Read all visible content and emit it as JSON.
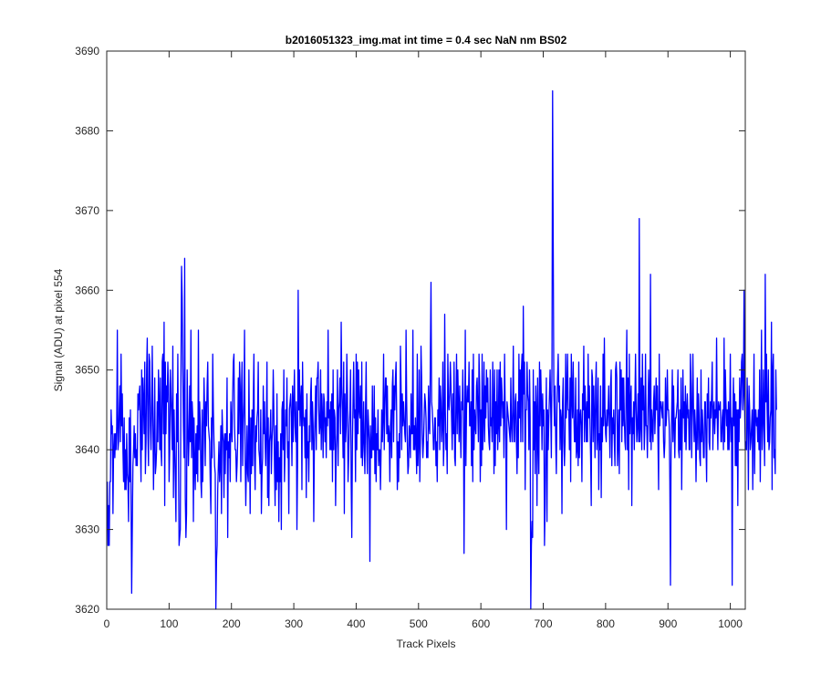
{
  "chart_data": {
    "type": "line",
    "title": "b2016051323_img.mat int time = 0.4 sec  NaN nm BS02",
    "xlabel": "Track Pixels",
    "ylabel": "Signal (ADU) at pixel 554",
    "xlim": [
      0,
      1024
    ],
    "ylim": [
      3620,
      3690
    ],
    "xticks": [
      0,
      100,
      200,
      300,
      400,
      500,
      600,
      700,
      800,
      900,
      1000
    ],
    "yticks": [
      3620,
      3630,
      3640,
      3650,
      3660,
      3670,
      3680,
      3690
    ],
    "grid": false,
    "line_color": "#0000ff",
    "series": [
      {
        "x_start": 1,
        "x_step": 1,
        "values": [
          3636,
          3628,
          3633,
          3628,
          3636,
          3636,
          3645,
          3642,
          3643,
          3632,
          3640,
          3642,
          3639,
          3642,
          3640,
          3643,
          3655,
          3640,
          3641,
          3645,
          3648,
          3641,
          3652,
          3643,
          3647,
          3640,
          3636,
          3644,
          3635,
          3640,
          3635,
          3642,
          3637,
          3636,
          3631,
          3644,
          3636,
          3645,
          3634,
          3622,
          3630,
          3638,
          3640,
          3643,
          3639,
          3642,
          3638,
          3640,
          3638,
          3647,
          3645,
          3647,
          3648,
          3641,
          3636,
          3650,
          3640,
          3649,
          3646,
          3642,
          3651,
          3637,
          3641,
          3650,
          3654,
          3642,
          3638,
          3652,
          3651,
          3643,
          3640,
          3645,
          3653,
          3644,
          3635,
          3641,
          3649,
          3637,
          3638,
          3640,
          3646,
          3641,
          3650,
          3646,
          3640,
          3649,
          3640,
          3638,
          3651,
          3652,
          3642,
          3656,
          3633,
          3651,
          3642,
          3648,
          3646,
          3651,
          3648,
          3636,
          3640,
          3650,
          3647,
          3644,
          3640,
          3653,
          3634,
          3645,
          3640,
          3636,
          3631,
          3647,
          3641,
          3652,
          3640,
          3628,
          3629,
          3630,
          3649,
          3663,
          3659,
          3650,
          3643,
          3639,
          3664,
          3634,
          3629,
          3632,
          3650,
          3644,
          3638,
          3641,
          3648,
          3641,
          3655,
          3639,
          3646,
          3644,
          3631,
          3644,
          3638,
          3635,
          3642,
          3637,
          3643,
          3636,
          3655,
          3640,
          3646,
          3643,
          3636,
          3634,
          3645,
          3636,
          3641,
          3649,
          3645,
          3638,
          3646,
          3643,
          3648,
          3651,
          3643,
          3642,
          3641,
          3636,
          3632,
          3644,
          3639,
          3652,
          3645,
          3641,
          3638,
          3637,
          3620,
          3626,
          3628,
          3635,
          3638,
          3641,
          3636,
          3638,
          3643,
          3632,
          3645,
          3642,
          3641,
          3634,
          3642,
          3637,
          3642,
          3640,
          3649,
          3629,
          3641,
          3639,
          3642,
          3636,
          3646,
          3643,
          3641,
          3647,
          3651,
          3652,
          3643,
          3640,
          3640,
          3636,
          3638,
          3641,
          3649,
          3642,
          3651,
          3648,
          3636,
          3647,
          3651,
          3638,
          3643,
          3646,
          3655,
          3639,
          3633,
          3638,
          3643,
          3637,
          3636,
          3650,
          3641,
          3632,
          3644,
          3637,
          3645,
          3638,
          3646,
          3652,
          3639,
          3635,
          3643,
          3641,
          3644,
          3645,
          3651,
          3640,
          3639,
          3637,
          3645,
          3632,
          3637,
          3639,
          3648,
          3642,
          3646,
          3641,
          3638,
          3643,
          3651,
          3634,
          3644,
          3633,
          3641,
          3642,
          3645,
          3637,
          3641,
          3643,
          3650,
          3645,
          3638,
          3633,
          3643,
          3635,
          3647,
          3636,
          3641,
          3631,
          3639,
          3636,
          3642,
          3630,
          3645,
          3646,
          3640,
          3650,
          3636,
          3640,
          3645,
          3643,
          3649,
          3639,
          3641,
          3632,
          3645,
          3646,
          3647,
          3644,
          3638,
          3648,
          3641,
          3646,
          3650,
          3643,
          3641,
          3646,
          3630,
          3638,
          3660,
          3645,
          3650,
          3643,
          3646,
          3648,
          3635,
          3651,
          3645,
          3643,
          3644,
          3639,
          3645,
          3634,
          3647,
          3639,
          3641,
          3636,
          3643,
          3641,
          3647,
          3649,
          3640,
          3646,
          3643,
          3631,
          3641,
          3644,
          3648,
          3640,
          3649,
          3649,
          3651,
          3645,
          3642,
          3643,
          3650,
          3640,
          3647,
          3644,
          3639,
          3647,
          3646,
          3641,
          3644,
          3639,
          3646,
          3643,
          3655,
          3644,
          3645,
          3640,
          3646,
          3640,
          3647,
          3636,
          3650,
          3640,
          3645,
          3644,
          3633,
          3640,
          3642,
          3650,
          3638,
          3645,
          3646,
          3649,
          3642,
          3656,
          3648,
          3645,
          3639,
          3651,
          3632,
          3647,
          3641,
          3643,
          3652,
          3647,
          3636,
          3639,
          3643,
          3645,
          3650,
          3636,
          3629,
          3641,
          3646,
          3651,
          3644,
          3645,
          3636,
          3652,
          3640,
          3651,
          3642,
          3650,
          3645,
          3644,
          3648,
          3639,
          3651,
          3638,
          3641,
          3646,
          3640,
          3637,
          3645,
          3651,
          3641,
          3637,
          3645,
          3643,
          3641,
          3626,
          3643,
          3639,
          3639,
          3648,
          3640,
          3640,
          3648,
          3637,
          3644,
          3636,
          3642,
          3640,
          3645,
          3638,
          3640,
          3640,
          3635,
          3640,
          3645,
          3641,
          3644,
          3652,
          3640,
          3645,
          3649,
          3649,
          3642,
          3648,
          3641,
          3643,
          3642,
          3636,
          3643,
          3645,
          3639,
          3648,
          3650,
          3641,
          3648,
          3645,
          3649,
          3651,
          3644,
          3635,
          3641,
          3636,
          3642,
          3639,
          3653,
          3648,
          3640,
          3647,
          3643,
          3646,
          3644,
          3642,
          3641,
          3655,
          3646,
          3641,
          3637,
          3638,
          3643,
          3642,
          3639,
          3647,
          3642,
          3642,
          3655,
          3640,
          3643,
          3640,
          3644,
          3641,
          3637,
          3652,
          3638,
          3641,
          3650,
          3636,
          3641,
          3653,
          3649,
          3642,
          3639,
          3641,
          3644,
          3647,
          3646,
          3644,
          3639,
          3641,
          3639,
          3648,
          3643,
          3642,
          3652,
          3661,
          3646,
          3645,
          3643,
          3640,
          3640,
          3644,
          3644,
          3638,
          3641,
          3636,
          3645,
          3643,
          3649,
          3640,
          3648,
          3646,
          3641,
          3643,
          3651,
          3638,
          3641,
          3657,
          3645,
          3640,
          3642,
          3637,
          3652,
          3646,
          3645,
          3647,
          3651,
          3648,
          3644,
          3640,
          3647,
          3642,
          3651,
          3639,
          3638,
          3646,
          3652,
          3642,
          3650,
          3646,
          3641,
          3648,
          3643,
          3639,
          3646,
          3645,
          3650,
          3645,
          3627,
          3641,
          3655,
          3638,
          3645,
          3648,
          3646,
          3646,
          3651,
          3643,
          3643,
          3646,
          3638,
          3650,
          3636,
          3652,
          3640,
          3645,
          3643,
          3642,
          3648,
          3649,
          3645,
          3641,
          3652,
          3648,
          3636,
          3645,
          3638,
          3652,
          3640,
          3644,
          3651,
          3641,
          3648,
          3644,
          3650,
          3646,
          3649,
          3643,
          3641,
          3640,
          3650,
          3643,
          3644,
          3641,
          3651,
          3646,
          3637,
          3650,
          3638,
          3646,
          3642,
          3650,
          3640,
          3643,
          3650,
          3641,
          3651,
          3643,
          3649,
          3647,
          3644,
          3646,
          3639,
          3652,
          3645,
          3641,
          3630,
          3646,
          3645,
          3644,
          3643,
          3642,
          3641,
          3649,
          3643,
          3641,
          3645,
          3653,
          3641,
          3641,
          3646,
          3647,
          3641,
          3637,
          3646,
          3639,
          3652,
          3644,
          3650,
          3641,
          3650,
          3652,
          3641,
          3658,
          3647,
          3651,
          3635,
          3645,
          3645,
          3651,
          3647,
          3646,
          3640,
          3650,
          3644,
          3620,
          3628,
          3631,
          3629,
          3650,
          3640,
          3646,
          3637,
          3648,
          3645,
          3633,
          3649,
          3641,
          3637,
          3651,
          3643,
          3650,
          3646,
          3640,
          3647,
          3643,
          3645,
          3628,
          3633,
          3642,
          3649,
          3631,
          3645,
          3640,
          3644,
          3647,
          3650,
          3645,
          3639,
          3651,
          3685,
          3666,
          3647,
          3643,
          3648,
          3641,
          3637,
          3645,
          3649,
          3652,
          3646,
          3648,
          3640,
          3645,
          3644,
          3632,
          3646,
          3649,
          3641,
          3638,
          3641,
          3652,
          3644,
          3647,
          3652,
          3645,
          3645,
          3640,
          3649,
          3636,
          3652,
          3647,
          3644,
          3651,
          3645,
          3641,
          3641,
          3649,
          3639,
          3640,
          3645,
          3638,
          3651,
          3639,
          3644,
          3645,
          3643,
          3636,
          3647,
          3645,
          3653,
          3641,
          3648,
          3645,
          3641,
          3646,
          3641,
          3652,
          3644,
          3648,
          3643,
          3639,
          3633,
          3650,
          3649,
          3641,
          3648,
          3644,
          3639,
          3648,
          3651,
          3640,
          3642,
          3649,
          3635,
          3642,
          3640,
          3648,
          3634,
          3644,
          3641,
          3652,
          3643,
          3654,
          3645,
          3642,
          3641,
          3645,
          3643,
          3645,
          3648,
          3643,
          3639,
          3648,
          3650,
          3638,
          3644,
          3642,
          3645,
          3641,
          3638,
          3650,
          3651,
          3649,
          3638,
          3641,
          3645,
          3637,
          3651,
          3645,
          3650,
          3641,
          3649,
          3643,
          3649,
          3644,
          3641,
          3640,
          3648,
          3655,
          3640,
          3649,
          3635,
          3652,
          3642,
          3646,
          3648,
          3633,
          3644,
          3642,
          3646,
          3640,
          3646,
          3652,
          3645,
          3641,
          3643,
          3647,
          3641,
          3669,
          3641,
          3643,
          3649,
          3640,
          3652,
          3645,
          3648,
          3640,
          3643,
          3652,
          3643,
          3643,
          3639,
          3645,
          3650,
          3646,
          3641,
          3662,
          3640,
          3645,
          3643,
          3641,
          3646,
          3648,
          3642,
          3645,
          3649,
          3645,
          3648,
          3641,
          3635,
          3652,
          3643,
          3646,
          3646,
          3645,
          3644,
          3646,
          3641,
          3639,
          3641,
          3649,
          3643,
          3645,
          3650,
          3645,
          3645,
          3643,
          3636,
          3623,
          3640,
          3645,
          3650,
          3641,
          3648,
          3643,
          3639,
          3644,
          3644,
          3645,
          3646,
          3650,
          3640,
          3639,
          3645,
          3640,
          3649,
          3635,
          3643,
          3650,
          3644,
          3646,
          3641,
          3648,
          3640,
          3645,
          3647,
          3644,
          3645,
          3640,
          3640,
          3652,
          3648,
          3639,
          3645,
          3652,
          3645,
          3641,
          3645,
          3643,
          3636,
          3642,
          3649,
          3640,
          3647,
          3644,
          3639,
          3638,
          3650,
          3641,
          3645,
          3643,
          3639,
          3639,
          3646,
          3646,
          3641,
          3636,
          3647,
          3644,
          3649,
          3641,
          3640,
          3646,
          3644,
          3647,
          3651,
          3640,
          3645,
          3646,
          3642,
          3645,
          3644,
          3654,
          3644,
          3640,
          3646,
          3645,
          3645,
          3646,
          3641,
          3641,
          3644,
          3645,
          3640,
          3654,
          3641,
          3650,
          3646,
          3643,
          3645,
          3640,
          3646,
          3640,
          3644,
          3652,
          3641,
          3644,
          3623,
          3644,
          3649,
          3643,
          3647,
          3638,
          3646,
          3638,
          3645,
          3633,
          3645,
          3641,
          3649,
          3644,
          3646,
          3651,
          3652,
          3645,
          3647,
          3660,
          3645,
          3640,
          3641,
          3640,
          3649,
          3645,
          3635,
          3648,
          3645,
          3640,
          3641,
          3643,
          3645,
          3635,
          3643,
          3652,
          3637,
          3645,
          3645,
          3643,
          3644,
          3641,
          3645,
          3640,
          3650,
          3636,
          3644,
          3655,
          3640,
          3643,
          3650,
          3643,
          3638,
          3662,
          3646,
          3652,
          3645,
          3641,
          3650,
          3640,
          3641,
          3644,
          3645,
          3656,
          3635,
          3650,
          3652,
          3639,
          3640,
          3637,
          3650,
          3645
        ]
      }
    ]
  }
}
